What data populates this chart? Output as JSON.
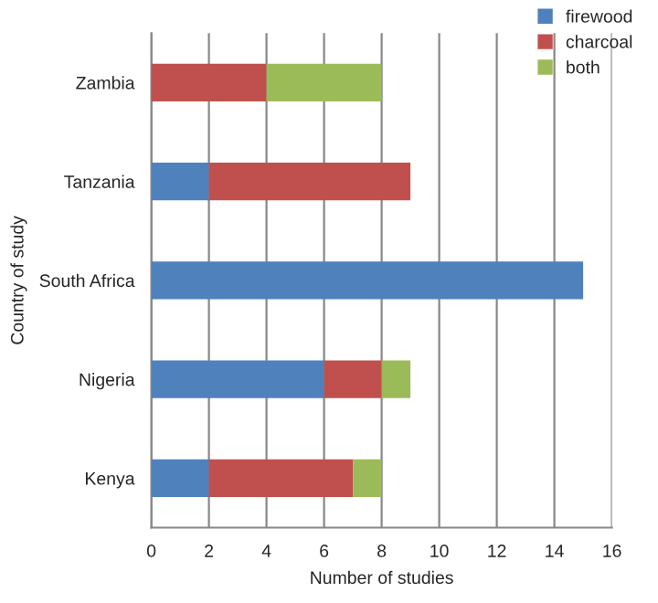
{
  "chart_data": {
    "type": "bar",
    "orientation": "horizontal",
    "stacked": true,
    "xlabel": "Number of studies",
    "ylabel": "Country of study",
    "categories": [
      "Zambia",
      "Tanzania",
      "South Africa",
      "Nigeria",
      "Kenya"
    ],
    "series": [
      {
        "name": "firewood",
        "color": "#4f81bd",
        "values": [
          0,
          2,
          15,
          6,
          2
        ]
      },
      {
        "name": "charcoal",
        "color": "#c0504d",
        "values": [
          4,
          7,
          0,
          2,
          5
        ]
      },
      {
        "name": "both",
        "color": "#9bbb59",
        "values": [
          4,
          0,
          0,
          1,
          1
        ]
      }
    ],
    "xlim": [
      0,
      16
    ],
    "xticks": [
      0,
      2,
      4,
      6,
      8,
      10,
      12,
      14,
      16
    ],
    "grid": "x",
    "legend": "top right"
  }
}
